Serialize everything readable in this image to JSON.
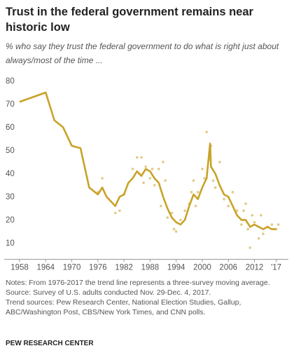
{
  "chart_data": {
    "type": "line",
    "title": "Trust in the federal government remains near historic low",
    "subtitle": "% who say they trust the federal government to do what is right just about always/most of the time ...",
    "notes": [
      "Notes: From 1976-2017 the trend line represents a three-survey moving average.",
      "Source: Survey of U.S. adults conducted Nov. 29-Dec. 4, 2017.",
      "Trend sources: Pew Research Center, National Election Studies, Gallup, ABC/Washington Post, CBS/New York Times, and CNN polls."
    ],
    "source": "PEW RESEARCH CENTER",
    "xlim": [
      1957,
      2019
    ],
    "xticks": [
      1958,
      1964,
      1970,
      1976,
      1982,
      1988,
      1994,
      2000,
      2006,
      2012,
      {
        "value": 2017,
        "label": "'17"
      }
    ],
    "ylim": [
      5,
      85
    ],
    "yticks": [
      10,
      20,
      30,
      40,
      50,
      60,
      70,
      80
    ],
    "grid": false,
    "series": [
      {
        "type": "scatter",
        "color": "#e2ca86",
        "x": [
          1976,
          1977,
          1980,
          1981,
          1982,
          1984,
          1985,
          1985.5,
          1986,
          1986.5,
          1987,
          1988,
          1988.5,
          1989,
          1990,
          1990.5,
          1991,
          1991.5,
          1992,
          1993,
          1993.5,
          1994,
          1995,
          1996,
          1997,
          1997.5,
          1998,
          1998.5,
          1999,
          2000,
          2000.5,
          2001,
          2001.5,
          2002,
          2002.5,
          2003,
          2004,
          2005,
          2006,
          2007,
          2008,
          2009,
          2009.5,
          2010,
          2010.5,
          2011,
          2011.5,
          2012,
          2013,
          2013.5,
          2014,
          2015,
          2016,
          2017,
          2017.5
        ],
        "values": [
          34,
          40,
          25,
          26,
          33,
          44,
          49,
          42,
          49,
          38,
          45,
          40,
          44,
          37,
          44,
          28,
          47,
          39,
          23,
          25,
          18,
          17,
          22,
          26,
          29,
          34,
          39,
          28,
          34,
          44,
          40,
          60,
          48,
          54,
          39,
          36,
          47,
          31,
          28,
          34,
          26,
          20,
          26,
          29,
          18,
          10,
          24,
          21,
          14,
          24,
          16,
          19,
          20,
          18,
          20
        ]
      },
      {
        "type": "line",
        "color": "#c9a227",
        "x": [
          1958,
          1964,
          1966,
          1968,
          1970,
          1972,
          1974,
          1976,
          1977,
          1978,
          1980,
          1981,
          1982,
          1983,
          1984,
          1985,
          1986,
          1987,
          1988,
          1989,
          1990,
          1991,
          1992,
          1993,
          1994,
          1995,
          1996,
          1997,
          1998,
          1999,
          2000,
          2001,
          2001.8,
          2002,
          2003,
          2004,
          2005,
          2006,
          2007,
          2008,
          2009,
          2010,
          2011,
          2012,
          2013,
          2014,
          2015,
          2016,
          2017
        ],
        "values": [
          73,
          77,
          65,
          62,
          54,
          53,
          36,
          33,
          36,
          32,
          28,
          32,
          33,
          38,
          40,
          43,
          41,
          44,
          43,
          40,
          38,
          32,
          27,
          23,
          21,
          20,
          22,
          28,
          33,
          31,
          36,
          40,
          55,
          45,
          42,
          37,
          33,
          32,
          28,
          24,
          22,
          22,
          19,
          20,
          19,
          18,
          19,
          18,
          18
        ]
      }
    ]
  }
}
